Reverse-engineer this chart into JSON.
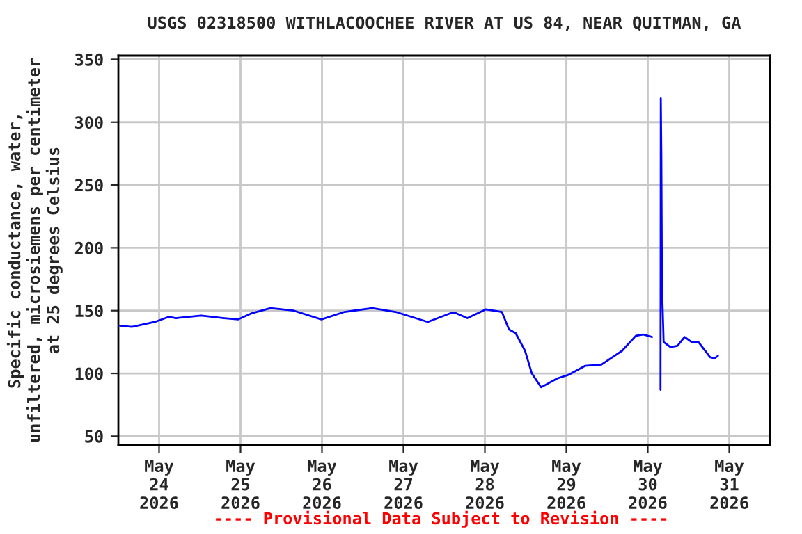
{
  "chart_data": {
    "type": "line",
    "title": "USGS 02318500 WITHLACOOCHEE RIVER AT US 84, NEAR QUITMAN, GA",
    "ylabel": "Specific conductance, water,\nunfiltered, microsiemens per centimeter\nat 25 degrees Celsius",
    "annotations": [
      "---- Provisional Data Subject to Revision ----"
    ],
    "x": [
      "2026-05-23T12:30",
      "2026-05-23T16:00",
      "2026-05-23T22:45",
      "2026-05-24T02:50",
      "2026-05-24T05:00",
      "2026-05-24T12:25",
      "2026-05-24T19:10",
      "2026-05-24T23:20",
      "2026-05-25T03:25",
      "2026-05-25T08:50",
      "2026-05-25T15:40",
      "2026-05-25T23:50",
      "2026-05-26T06:40",
      "2026-05-26T14:50",
      "2026-05-26T21:40",
      "2026-05-27T07:10",
      "2026-05-27T14:00",
      "2026-05-27T15:25",
      "2026-05-27T18:50",
      "2026-05-28T00:15",
      "2026-05-28T05:00",
      "2026-05-28T07:05",
      "2026-05-28T09:05",
      "2026-05-28T11:50",
      "2026-05-28T13:50",
      "2026-05-28T16:35",
      "2026-05-28T21:20",
      "2026-05-29T00:45",
      "2026-05-29T05:30",
      "2026-05-29T10:20",
      "2026-05-29T16:25",
      "2026-05-29T20:30",
      "2026-05-29T22:35",
      "2026-05-30T01:15",
      "2026-05-30T02:45",
      "2026-05-30T03:45",
      "2026-05-30T03:50",
      "2026-05-30T04:00",
      "2026-05-30T04:10",
      "2026-05-30T04:40",
      "2026-05-30T06:40",
      "2026-05-30T08:45",
      "2026-05-30T10:50",
      "2026-05-30T12:55",
      "2026-05-30T14:55",
      "2026-05-30T18:20",
      "2026-05-30T19:40",
      "2026-05-30T20:40"
    ],
    "series": [
      {
        "color": "#0000ff",
        "values": [
          138,
          137,
          141,
          145,
          144,
          146,
          144,
          143,
          148,
          152,
          150,
          143,
          149,
          152,
          149,
          141,
          148,
          148,
          144,
          151,
          149,
          135,
          132,
          118,
          100,
          89,
          96,
          99,
          106,
          107,
          118,
          130,
          131,
          129,
          null,
          87,
          319,
          270,
          172,
          125,
          121,
          122,
          129,
          125,
          125,
          113,
          112,
          114
        ]
      }
    ],
    "xlim": [
      "2026-05-23T12:00",
      "2026-05-31T12:00"
    ],
    "xticks": [
      {
        "value": "2026-05-24",
        "label": "May\n24\n2026"
      },
      {
        "value": "2026-05-25",
        "label": "May\n25\n2026"
      },
      {
        "value": "2026-05-26",
        "label": "May\n26\n2026"
      },
      {
        "value": "2026-05-27",
        "label": "May\n27\n2026"
      },
      {
        "value": "2026-05-28",
        "label": "May\n28\n2026"
      },
      {
        "value": "2026-05-29",
        "label": "May\n29\n2026"
      },
      {
        "value": "2026-05-30",
        "label": "May\n30\n2026"
      },
      {
        "value": "2026-05-31",
        "label": "May\n31\n2026"
      }
    ],
    "ylim": [
      43,
      353
    ],
    "yticks": [
      50,
      100,
      150,
      200,
      250,
      300,
      350
    ],
    "grid": true
  }
}
